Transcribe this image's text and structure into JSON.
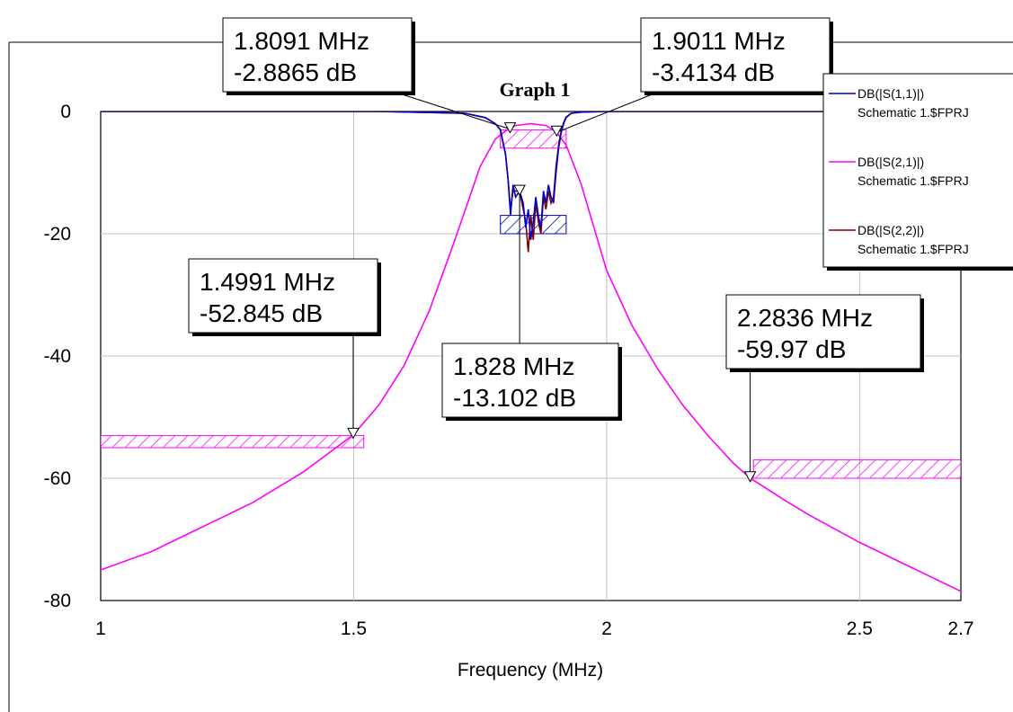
{
  "chart_data": {
    "type": "line",
    "title": "Graph 1",
    "xlabel": "Frequency (MHz)",
    "ylabel": "",
    "xlim": [
      1,
      2.7
    ],
    "ylim": [
      -80,
      0
    ],
    "x_ticks": [
      1,
      1.5,
      2,
      2.5,
      2.7
    ],
    "x_tick_labels": [
      "1",
      "1.5",
      "2",
      "2.5",
      "2.7"
    ],
    "y_ticks": [
      0,
      -20,
      -40,
      -60,
      -80
    ],
    "y_tick_labels": [
      "0",
      "-20",
      "-40",
      "-60",
      "-80"
    ],
    "grid": true,
    "legend_position": "top-right",
    "series": [
      {
        "name": "DB(|S(1,1)|)",
        "legend_sub": "Schematic 1.$FPRJ",
        "color": "#0000C0",
        "x": [
          1.0,
          1.55,
          1.72,
          1.76,
          1.78,
          1.79,
          1.8,
          1.805,
          1.81,
          1.815,
          1.82,
          1.828,
          1.835,
          1.84,
          1.845,
          1.85,
          1.855,
          1.86,
          1.865,
          1.87,
          1.875,
          1.88,
          1.885,
          1.89,
          1.895,
          1.9,
          1.905,
          1.91,
          1.915,
          1.92,
          1.93,
          1.95,
          2.0,
          2.7
        ],
        "y": [
          0,
          0,
          -0.3,
          -1.0,
          -2.0,
          -3.0,
          -7,
          -11,
          -17,
          -12,
          -14,
          -13,
          -15,
          -19,
          -16,
          -21,
          -18,
          -14,
          -17,
          -19,
          -13,
          -15,
          -12,
          -14,
          -15,
          -10,
          -6,
          -3.5,
          -2.0,
          -1.0,
          -0.3,
          -0.1,
          0,
          0
        ]
      },
      {
        "name": "DB(|S(2,1)|)",
        "legend_sub": "Schematic 1.$FPRJ",
        "color": "#FF00FF",
        "x": [
          1.0,
          1.1,
          1.2,
          1.3,
          1.4,
          1.5,
          1.55,
          1.6,
          1.65,
          1.7,
          1.75,
          1.78,
          1.8,
          1.82,
          1.85,
          1.88,
          1.9,
          1.92,
          1.95,
          2.0,
          2.05,
          2.1,
          2.15,
          2.2,
          2.25,
          2.2836,
          2.35,
          2.4,
          2.5,
          2.6,
          2.7
        ],
        "y": [
          -75,
          -72,
          -68,
          -64,
          -59,
          -52.845,
          -48,
          -41.5,
          -32.5,
          -21,
          -9,
          -4.5,
          -3.2,
          -2.3,
          -2.0,
          -2.3,
          -3.3,
          -5.5,
          -12,
          -26,
          -35,
          -42,
          -48,
          -53,
          -57.5,
          -59.97,
          -63.5,
          -66,
          -70.5,
          -74.5,
          -78.5
        ]
      },
      {
        "name": "DB(|S(2,2)|)",
        "legend_sub": "Schematic 1.$FPRJ",
        "color": "#800000",
        "x": [
          1.0,
          1.55,
          1.72,
          1.76,
          1.78,
          1.79,
          1.8,
          1.805,
          1.81,
          1.815,
          1.82,
          1.828,
          1.835,
          1.84,
          1.845,
          1.85,
          1.855,
          1.86,
          1.865,
          1.87,
          1.875,
          1.88,
          1.885,
          1.89,
          1.895,
          1.9,
          1.905,
          1.91,
          1.915,
          1.92,
          1.93,
          1.95,
          2.0,
          2.7
        ],
        "y": [
          0,
          0,
          -0.3,
          -1.0,
          -2.0,
          -3.0,
          -7,
          -11,
          -16,
          -13,
          -13,
          -13.1,
          -16,
          -18,
          -23,
          -17,
          -21,
          -15,
          -18,
          -20,
          -14,
          -16,
          -13,
          -15,
          -14,
          -9,
          -5.5,
          -3.2,
          -1.8,
          -0.9,
          -0.3,
          -0.1,
          0,
          0
        ]
      }
    ],
    "spec_regions": [
      {
        "x": [
          1.0,
          1.52
        ],
        "y": [
          -55,
          -53
        ],
        "color": "#FF00FF"
      },
      {
        "x": [
          1.79,
          1.92
        ],
        "y": [
          -3,
          -6
        ],
        "color": "#FF00FF"
      },
      {
        "x": [
          1.79,
          1.92
        ],
        "y": [
          -20,
          -17
        ],
        "color": "#0000C0"
      },
      {
        "x": [
          2.29,
          2.7
        ],
        "y": [
          -60,
          -57
        ],
        "color": "#FF00FF"
      }
    ],
    "markers": [
      {
        "x": 1.8091,
        "y": -2.8865,
        "label_line1": "1.8091 MHz",
        "label_line2": "-2.8865 dB"
      },
      {
        "x": 1.9011,
        "y": -3.4134,
        "label_line1": "1.9011 MHz",
        "label_line2": "-3.4134 dB"
      },
      {
        "x": 1.4991,
        "y": -52.845,
        "label_line1": "1.4991 MHz",
        "label_line2": "-52.845 dB"
      },
      {
        "x": 1.828,
        "y": -13.102,
        "label_line1": "1.828 MHz",
        "label_line2": "-13.102 dB"
      },
      {
        "x": 2.2836,
        "y": -59.97,
        "label_line1": "2.2836 MHz",
        "label_line2": "-59.97 dB"
      }
    ]
  }
}
